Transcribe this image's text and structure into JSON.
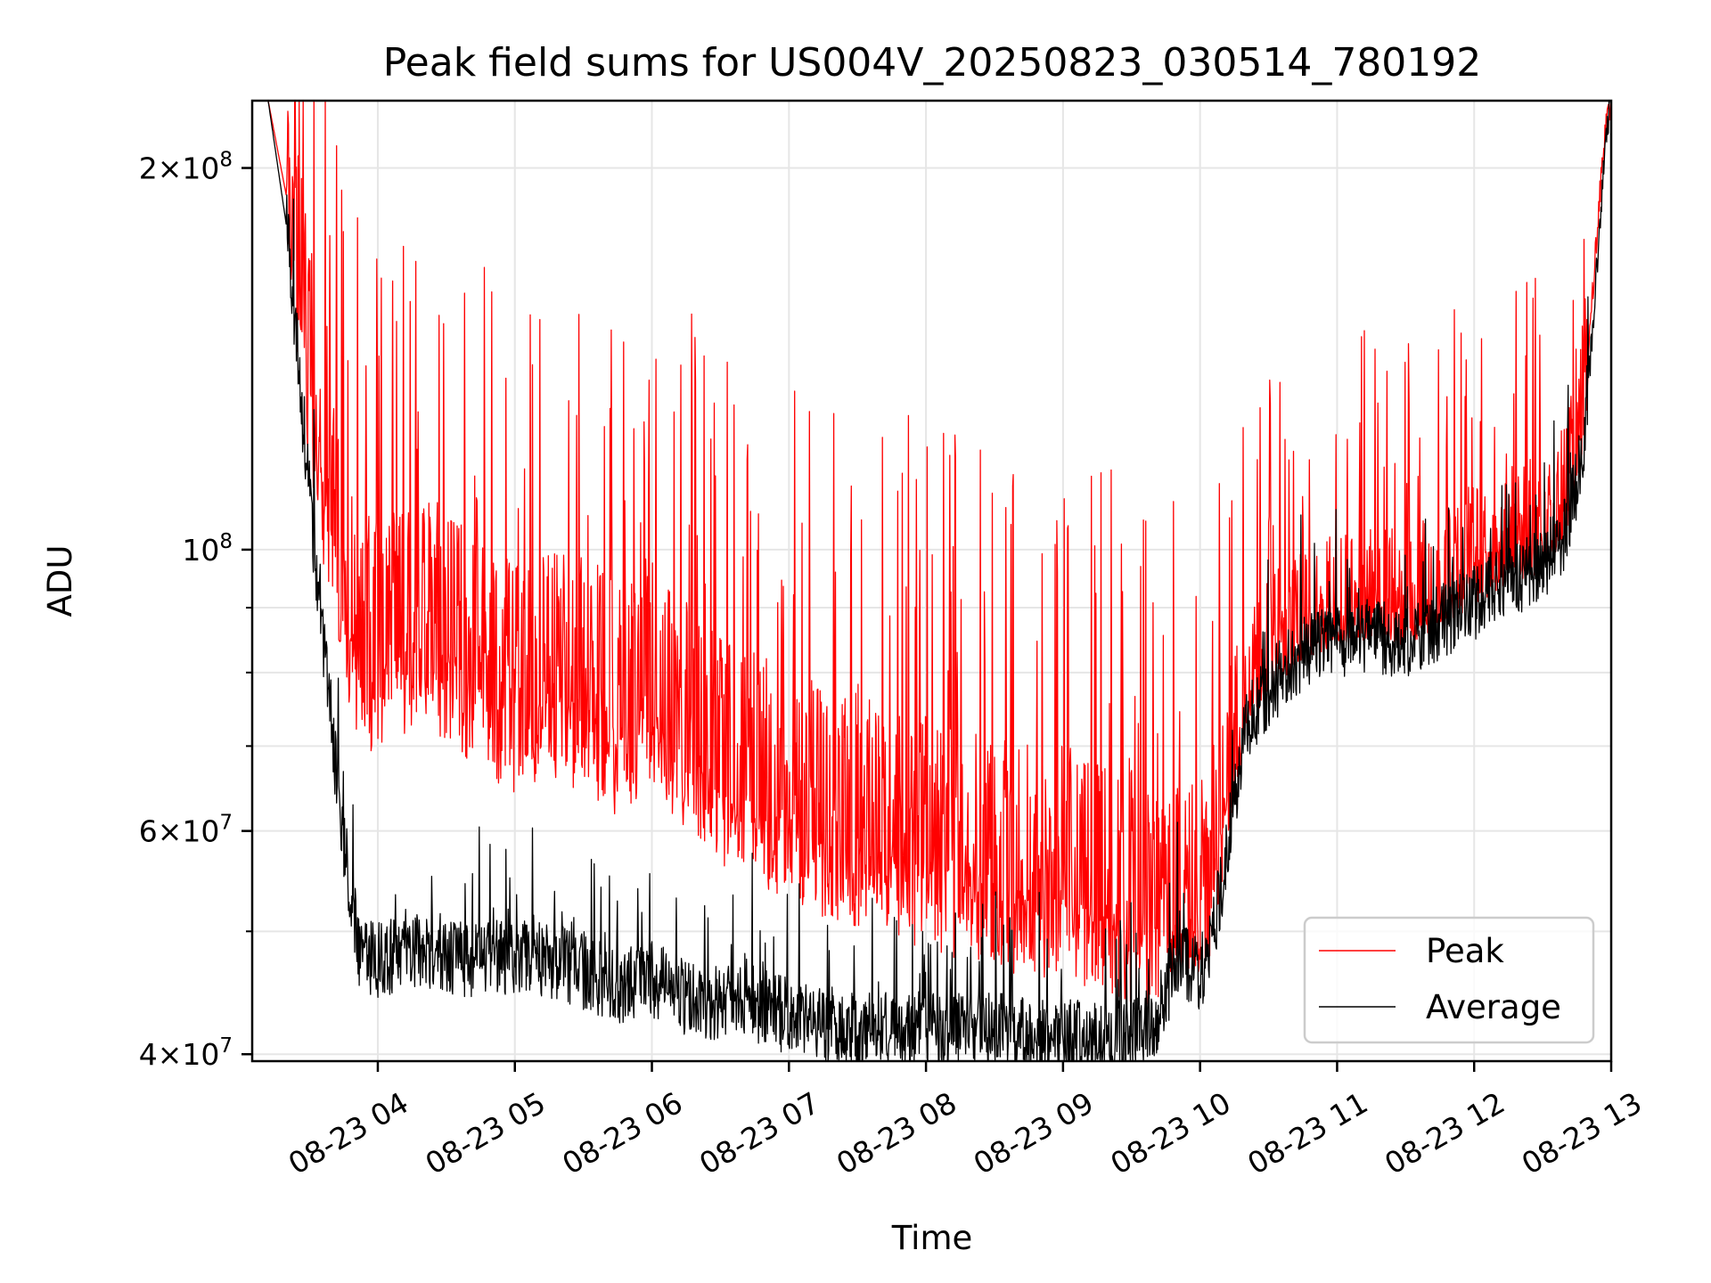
{
  "chart_data": {
    "type": "line",
    "title": "Peak field sums for US004V_20250823_030514_780192",
    "xlabel": "Time",
    "ylabel": "ADU",
    "yscale": "log",
    "xlim": [
      "08-23 03:05",
      "08-23 13:00"
    ],
    "ylim": [
      39500000,
      226000000
    ],
    "grid": true,
    "legend_position": "lower-right",
    "x_tick_labels": [
      "08-23 04",
      "08-23 05",
      "08-23 06",
      "08-23 07",
      "08-23 08",
      "08-23 09",
      "08-23 10",
      "08-23 11",
      "08-23 12",
      "08-23 13"
    ],
    "y_tick_labels": [
      {
        "value": 40000000,
        "mantissa": "4",
        "exponent": "7"
      },
      {
        "value": 60000000,
        "mantissa": "6",
        "exponent": "7"
      },
      {
        "value": 100000000,
        "mantissa": "",
        "exponent": "8"
      },
      {
        "value": 200000000,
        "mantissa": "2",
        "exponent": "8"
      }
    ],
    "series": [
      {
        "name": "Peak",
        "color": "#ff0000",
        "x": [
          "08-23 03:05",
          "08-23 03:12",
          "08-23 03:20",
          "08-23 03:28",
          "08-23 03:36",
          "08-23 03:44",
          "08-23 03:52",
          "08-23 04:00",
          "08-23 04:15",
          "08-23 04:30",
          "08-23 04:45",
          "08-23 05:00",
          "08-23 05:15",
          "08-23 05:30",
          "08-23 05:45",
          "08-23 06:00",
          "08-23 06:15",
          "08-23 06:30",
          "08-23 06:45",
          "08-23 07:00",
          "08-23 07:15",
          "08-23 07:30",
          "08-23 07:45",
          "08-23 08:00",
          "08-23 08:15",
          "08-23 08:30",
          "08-23 08:45",
          "08-23 09:00",
          "08-23 09:15",
          "08-23 09:30",
          "08-23 09:40",
          "08-23 09:50",
          "08-23 10:00",
          "08-23 10:05",
          "08-23 10:10",
          "08-23 10:20",
          "08-23 10:30",
          "08-23 10:45",
          "08-23 11:00",
          "08-23 11:15",
          "08-23 11:30",
          "08-23 11:45",
          "08-23 12:00",
          "08-23 12:15",
          "08-23 12:30",
          "08-23 12:40",
          "08-23 12:48",
          "08-23 12:54",
          "08-23 12:58",
          "08-23 13:00"
        ],
        "y": [
          226000000,
          226000000,
          190000000,
          140000000,
          110000000,
          90000000,
          80000000,
          78000000,
          82000000,
          80000000,
          76000000,
          72000000,
          75000000,
          73000000,
          70000000,
          74000000,
          68000000,
          64000000,
          62000000,
          60000000,
          58000000,
          57000000,
          56000000,
          55000000,
          54000000,
          53000000,
          52000000,
          52000000,
          51000000,
          50000000,
          49000000,
          49000000,
          49000000,
          52000000,
          60000000,
          75000000,
          80000000,
          84000000,
          86000000,
          88000000,
          87000000,
          90000000,
          95000000,
          98000000,
          100000000,
          110000000,
          130000000,
          180000000,
          220000000,
          226000000
        ]
      },
      {
        "name": "Average",
        "color": "#000000",
        "x": [
          "08-23 03:05",
          "08-23 03:12",
          "08-23 03:20",
          "08-23 03:28",
          "08-23 03:36",
          "08-23 03:44",
          "08-23 03:52",
          "08-23 04:00",
          "08-23 04:15",
          "08-23 04:30",
          "08-23 04:45",
          "08-23 05:00",
          "08-23 05:15",
          "08-23 05:30",
          "08-23 05:45",
          "08-23 06:00",
          "08-23 06:15",
          "08-23 06:30",
          "08-23 06:45",
          "08-23 07:00",
          "08-23 07:15",
          "08-23 07:30",
          "08-23 07:45",
          "08-23 08:00",
          "08-23 08:15",
          "08-23 08:30",
          "08-23 08:45",
          "08-23 09:00",
          "08-23 09:15",
          "08-23 09:30",
          "08-23 09:40",
          "08-23 09:50",
          "08-23 10:00",
          "08-23 10:05",
          "08-23 10:10",
          "08-23 10:20",
          "08-23 10:30",
          "08-23 10:45",
          "08-23 11:00",
          "08-23 11:15",
          "08-23 11:30",
          "08-23 11:45",
          "08-23 12:00",
          "08-23 12:15",
          "08-23 12:30",
          "08-23 12:40",
          "08-23 12:48",
          "08-23 12:54",
          "08-23 12:58",
          "08-23 13:00"
        ],
        "y": [
          226000000,
          226000000,
          180000000,
          120000000,
          85000000,
          60000000,
          48000000,
          47000000,
          48000000,
          47500000,
          47000000,
          47500000,
          47000000,
          46000000,
          45000000,
          45500000,
          44000000,
          43500000,
          43500000,
          42500000,
          42000000,
          41500000,
          41500000,
          41500000,
          41500000,
          41500000,
          41000000,
          41000000,
          40800000,
          40800000,
          42000000,
          47000000,
          46000000,
          48000000,
          55000000,
          72000000,
          77000000,
          82000000,
          84000000,
          85000000,
          84000000,
          87000000,
          90000000,
          94000000,
          96000000,
          102000000,
          120000000,
          170000000,
          215000000,
          226000000
        ]
      }
    ]
  }
}
